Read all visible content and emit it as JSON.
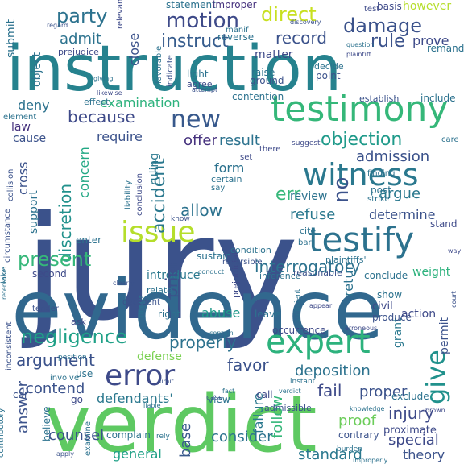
{
  "words": [
    {
      "text": "jury",
      "color": "#3b528b"
    },
    {
      "text": "evidence",
      "color": "#31688e"
    },
    {
      "text": "verdict",
      "color": "#5ec962"
    },
    {
      "text": "instruction",
      "color": "#26828e"
    },
    {
      "text": "testimony",
      "color": "#35b779"
    },
    {
      "text": "testify",
      "color": "#2c728e"
    },
    {
      "text": "witness",
      "color": "#2a788e"
    },
    {
      "text": "expert",
      "color": "#2db27d"
    },
    {
      "text": "error",
      "color": "#3e4a89"
    },
    {
      "text": "issue",
      "color": "#b5de2b"
    },
    {
      "text": "motion",
      "color": "#3e4a89"
    },
    {
      "text": "damage",
      "color": "#3b528b"
    },
    {
      "text": "direct",
      "color": "#c8e020"
    },
    {
      "text": "party",
      "color": "#2c728e"
    },
    {
      "text": "instruct",
      "color": "#365c8d"
    },
    {
      "text": "record",
      "color": "#3b528b"
    },
    {
      "text": "rule",
      "color": "#3b528b"
    },
    {
      "text": "admit",
      "color": "#2c728e"
    },
    {
      "text": "prove",
      "color": "#3e4a89"
    },
    {
      "text": "new",
      "color": "#38598c"
    },
    {
      "text": "objection",
      "color": "#1f9a8a"
    },
    {
      "text": "because",
      "color": "#3e4a89"
    },
    {
      "text": "examination",
      "color": "#2db27d"
    },
    {
      "text": "offer",
      "color": "#46327e"
    },
    {
      "text": "result",
      "color": "#2c728e"
    },
    {
      "text": "admission",
      "color": "#3b528b"
    },
    {
      "text": "accident",
      "color": "#2a788e"
    },
    {
      "text": "discretion",
      "color": "#21918c"
    },
    {
      "text": "err",
      "color": "#35b779"
    },
    {
      "text": "no",
      "color": "#3b528b"
    },
    {
      "text": "argue",
      "color": "#2a788e"
    },
    {
      "text": "allow",
      "color": "#2c728e"
    },
    {
      "text": "refuse",
      "color": "#2a788e"
    },
    {
      "text": "determine",
      "color": "#3b528b"
    },
    {
      "text": "interrogatory",
      "color": "#2c728e"
    },
    {
      "text": "present",
      "color": "#35b779"
    },
    {
      "text": "negligence",
      "color": "#1fa187"
    },
    {
      "text": "properly",
      "color": "#2c728e"
    },
    {
      "text": "argument",
      "color": "#3b528b"
    },
    {
      "text": "favor",
      "color": "#3b528b"
    },
    {
      "text": "deposition",
      "color": "#2c728e"
    },
    {
      "text": "give",
      "color": "#21918c"
    },
    {
      "text": "contend",
      "color": "#3b528b"
    },
    {
      "text": "defendants'",
      "color": "#2a788e"
    },
    {
      "text": "fail",
      "color": "#3e4a89"
    },
    {
      "text": "injury",
      "color": "#3e4a89"
    },
    {
      "text": "proof",
      "color": "#6ccd5a"
    },
    {
      "text": "answer",
      "color": "#3b528b"
    },
    {
      "text": "follow",
      "color": "#35b779"
    },
    {
      "text": "failure",
      "color": "#2a788e"
    },
    {
      "text": "special",
      "color": "#3e4a89"
    },
    {
      "text": "counsel",
      "color": "#3b528b"
    },
    {
      "text": "general",
      "color": "#1fa187"
    },
    {
      "text": "consider",
      "color": "#2c728e"
    },
    {
      "text": "standard",
      "color": "#2a788e"
    },
    {
      "text": "theory",
      "color": "#3b528b"
    },
    {
      "text": "base",
      "color": "#38598c"
    },
    {
      "text": "proper",
      "color": "#3b528b"
    },
    {
      "text": "law",
      "color": "#46327e"
    },
    {
      "text": "deny",
      "color": "#2c728e"
    },
    {
      "text": "require",
      "color": "#3b528b"
    },
    {
      "text": "ruling",
      "color": "#2a788e"
    },
    {
      "text": "form",
      "color": "#2c728e"
    },
    {
      "text": "support",
      "color": "#2c728e"
    },
    {
      "text": "cross",
      "color": "#3b528b"
    },
    {
      "text": "concern",
      "color": "#22a884"
    },
    {
      "text": "review",
      "color": "#2c728e"
    },
    {
      "text": "weight",
      "color": "#2db27d"
    },
    {
      "text": "introduce",
      "color": "#2a788e"
    },
    {
      "text": "prior",
      "color": "#3b528b"
    },
    {
      "text": "return",
      "color": "#2c728e"
    },
    {
      "text": "grant",
      "color": "#2a788e"
    },
    {
      "text": "permit",
      "color": "#3b528b"
    },
    {
      "text": "abuse",
      "color": "#1f9a8a"
    },
    {
      "text": "defense",
      "color": "#7ad151"
    },
    {
      "text": "use",
      "color": "#2c728e"
    },
    {
      "text": "enter",
      "color": "#2c728e"
    },
    {
      "text": "post",
      "color": "#2c728e"
    },
    {
      "text": "cause",
      "color": "#3b528b"
    },
    {
      "text": "matter",
      "color": "#3e4a89"
    },
    {
      "text": "close",
      "color": "#3b528b"
    },
    {
      "text": "submit",
      "color": "#2c728e"
    },
    {
      "text": "object",
      "color": "#2c728e"
    },
    {
      "text": "statement",
      "color": "#2c728e"
    },
    {
      "text": "improper",
      "color": "#46327e"
    },
    {
      "text": "basis",
      "color": "#3e4a89"
    },
    {
      "text": "however",
      "color": "#b5de2b"
    },
    {
      "text": "remand",
      "color": "#2c728e"
    },
    {
      "text": "include",
      "color": "#2c728e"
    },
    {
      "text": "establish",
      "color": "#3b528b"
    },
    {
      "text": "raise",
      "color": "#2c728e"
    },
    {
      "text": "ground",
      "color": "#3b528b"
    },
    {
      "text": "decide",
      "color": "#2c728e"
    },
    {
      "text": "point",
      "color": "#3b528b"
    },
    {
      "text": "agree",
      "color": "#3e4a89"
    },
    {
      "text": "light",
      "color": "#2c728e"
    },
    {
      "text": "effect",
      "color": "#2c728e"
    },
    {
      "text": "contention",
      "color": "#2c728e"
    },
    {
      "text": "reverse",
      "color": "#2c728e"
    },
    {
      "text": "prejudice",
      "color": "#3e4a89"
    },
    {
      "text": "manif",
      "color": "#2c728e"
    },
    {
      "text": "relevant",
      "color": "#3e4a89"
    },
    {
      "text": "favorable",
      "color": "#2c728e"
    },
    {
      "text": "indicate",
      "color": "#3b528b"
    },
    {
      "text": "element",
      "color": "#2c728e"
    },
    {
      "text": "collision",
      "color": "#3b528b"
    },
    {
      "text": "circumstance",
      "color": "#3b528b"
    },
    {
      "text": "finding",
      "color": "#2c728e"
    },
    {
      "text": "plaintiffs'",
      "color": "#2c728e"
    },
    {
      "text": "liability",
      "color": "#2c728e"
    },
    {
      "text": "certain",
      "color": "#2c728e"
    },
    {
      "text": "conclusion",
      "color": "#3e4a89"
    },
    {
      "text": "condition",
      "color": "#2c728e"
    },
    {
      "text": "sustain",
      "color": "#2c728e"
    },
    {
      "text": "inference",
      "color": "#2c728e"
    },
    {
      "text": "reasonable",
      "color": "#3b528b"
    },
    {
      "text": "prejudicial",
      "color": "#3e4a89"
    },
    {
      "text": "conclude",
      "color": "#2c728e"
    },
    {
      "text": "second",
      "color": "#3e4a89"
    },
    {
      "text": "relate",
      "color": "#2c728e"
    },
    {
      "text": "show",
      "color": "#2c728e"
    },
    {
      "text": "civil",
      "color": "#3e4a89"
    },
    {
      "text": "produce",
      "color": "#3b528b"
    },
    {
      "text": "action",
      "color": "#3e4a89"
    },
    {
      "text": "leave",
      "color": "#2c728e"
    },
    {
      "text": "occurrence",
      "color": "#3e4a89"
    },
    {
      "text": "right",
      "color": "#2c728e"
    },
    {
      "text": "tender",
      "color": "#3b528b"
    },
    {
      "text": "ask",
      "color": "#3e4a89"
    },
    {
      "text": "view",
      "color": "#2c728e"
    },
    {
      "text": "call",
      "color": "#3e4a89"
    },
    {
      "text": "admissible",
      "color": "#3b528b"
    },
    {
      "text": "exclude",
      "color": "#2c728e"
    },
    {
      "text": "proximate",
      "color": "#3e4a89"
    },
    {
      "text": "contrary",
      "color": "#3b528b"
    },
    {
      "text": "complain",
      "color": "#2c728e"
    },
    {
      "text": "believe",
      "color": "#2c728e"
    },
    {
      "text": "examine",
      "color": "#2c728e"
    },
    {
      "text": "cite",
      "color": "#2c728e"
    },
    {
      "text": "bar",
      "color": "#2c728e"
    },
    {
      "text": "stand",
      "color": "#3e4a89"
    },
    {
      "text": "strike",
      "color": "#2c728e"
    },
    {
      "text": "reversible",
      "color": "#3b528b"
    },
    {
      "text": "occur",
      "color": "#2c728e"
    },
    {
      "text": "decedent",
      "color": "#3b528b"
    },
    {
      "text": "set",
      "color": "#3e4a89"
    },
    {
      "text": "say",
      "color": "#2c728e"
    },
    {
      "text": "lake",
      "color": "#2c728e"
    },
    {
      "text": "know",
      "color": "#3b528b"
    },
    {
      "text": "there",
      "color": "#3e4a89"
    },
    {
      "text": "test",
      "color": "#3e4a89"
    },
    {
      "text": "care",
      "color": "#2c728e"
    },
    {
      "text": "discovery",
      "color": "#3b528b"
    },
    {
      "text": "giving",
      "color": "#2c728e"
    },
    {
      "text": "attempt",
      "color": "#3b528b"
    },
    {
      "text": "suggest",
      "color": "#3e4a89"
    },
    {
      "text": "inconsistent",
      "color": "#3b528b"
    },
    {
      "text": "contributory",
      "color": "#2c728e"
    },
    {
      "text": "sufficient",
      "color": "#2c728e"
    },
    {
      "text": "appear",
      "color": "#3e4a89"
    },
    {
      "text": "burden",
      "color": "#2c728e"
    },
    {
      "text": "car",
      "color": "#3b528b"
    },
    {
      "text": "go",
      "color": "#3e4a89"
    },
    {
      "text": "rely",
      "color": "#2c728e"
    },
    {
      "text": "case",
      "color": "#3b528b"
    },
    {
      "text": "instant",
      "color": "#2c728e"
    },
    {
      "text": "verdict",
      "color": "#2c728e"
    },
    {
      "text": "involve",
      "color": "#2c728e"
    },
    {
      "text": "position",
      "color": "#2c728e"
    },
    {
      "text": "limit",
      "color": "#3b528b"
    },
    {
      "text": "contain",
      "color": "#2c728e"
    },
    {
      "text": "erroneous",
      "color": "#3e4a89"
    },
    {
      "text": "clearly",
      "color": "#3b528b"
    },
    {
      "text": "conduct",
      "color": "#2c728e"
    },
    {
      "text": "reference",
      "color": "#2c728e"
    },
    {
      "text": "brown",
      "color": "#3e4a89"
    },
    {
      "text": "improperly",
      "color": "#2c728e"
    },
    {
      "text": "knowledge",
      "color": "#2c728e"
    },
    {
      "text": "regard",
      "color": "#3b528b"
    },
    {
      "text": "question",
      "color": "#2c728e"
    },
    {
      "text": "plaintiff",
      "color": "#3e4a89"
    },
    {
      "text": "court",
      "color": "#3b528b"
    },
    {
      "text": "way",
      "color": "#3e4a89"
    },
    {
      "text": "liable",
      "color": "#2c728e"
    },
    {
      "text": "apply",
      "color": "#3b528b"
    },
    {
      "text": "fact",
      "color": "#2c728e"
    },
    {
      "text": "likewise",
      "color": "#3e4a89"
    }
  ]
}
